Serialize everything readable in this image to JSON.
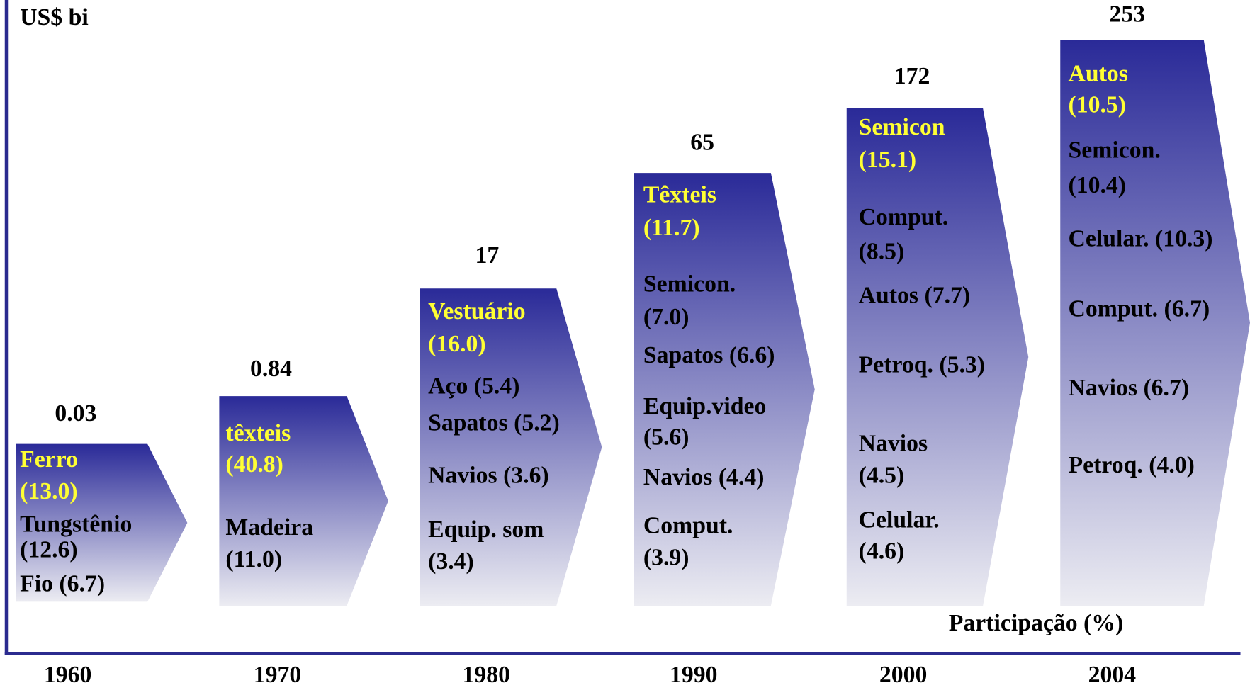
{
  "header": {
    "unit": "US$ bi",
    "note": "Participação (%)"
  },
  "columns": [
    {
      "year": "1960",
      "total": "0.03",
      "lines": [
        "Ferro",
        "(13.0)",
        "Tungstênio",
        "(12.6)",
        "Fio (6.7)"
      ]
    },
    {
      "year": "1970",
      "total": "0.84",
      "lines": [
        "têxteis",
        "(40.8)",
        "Madeira",
        "(11.0)"
      ]
    },
    {
      "year": "1980",
      "total": "17",
      "lines": [
        "Vestuário",
        "(16.0)",
        "Aço (5.4)",
        "Sapatos (5.2)",
        "Navios (3.6)",
        "Equip. som",
        "(3.4)"
      ]
    },
    {
      "year": "1990",
      "total": "65",
      "lines": [
        "Têxteis",
        "(11.7)",
        "Semicon.",
        "(7.0)",
        "Sapatos (6.6)",
        "Equip.video",
        "(5.6)",
        "Navios (4.4)",
        "Comput.",
        "(3.9)"
      ]
    },
    {
      "year": "2000",
      "total": "172",
      "lines": [
        "Semicon",
        "(15.1)",
        "Comput.",
        "(8.5)",
        "Autos (7.7)",
        "Petroq. (5.3)",
        "Navios",
        "(4.5)",
        "Celular.",
        "(4.6)"
      ]
    },
    {
      "year": "2004",
      "total": "253",
      "lines": [
        "Autos",
        "(10.5)",
        "Semicon.",
        "(10.4)",
        "Celular. (10.3)",
        "Comput. (6.7)",
        "Navios (6.7)",
        "Petroq. (4.0)"
      ]
    }
  ]
}
